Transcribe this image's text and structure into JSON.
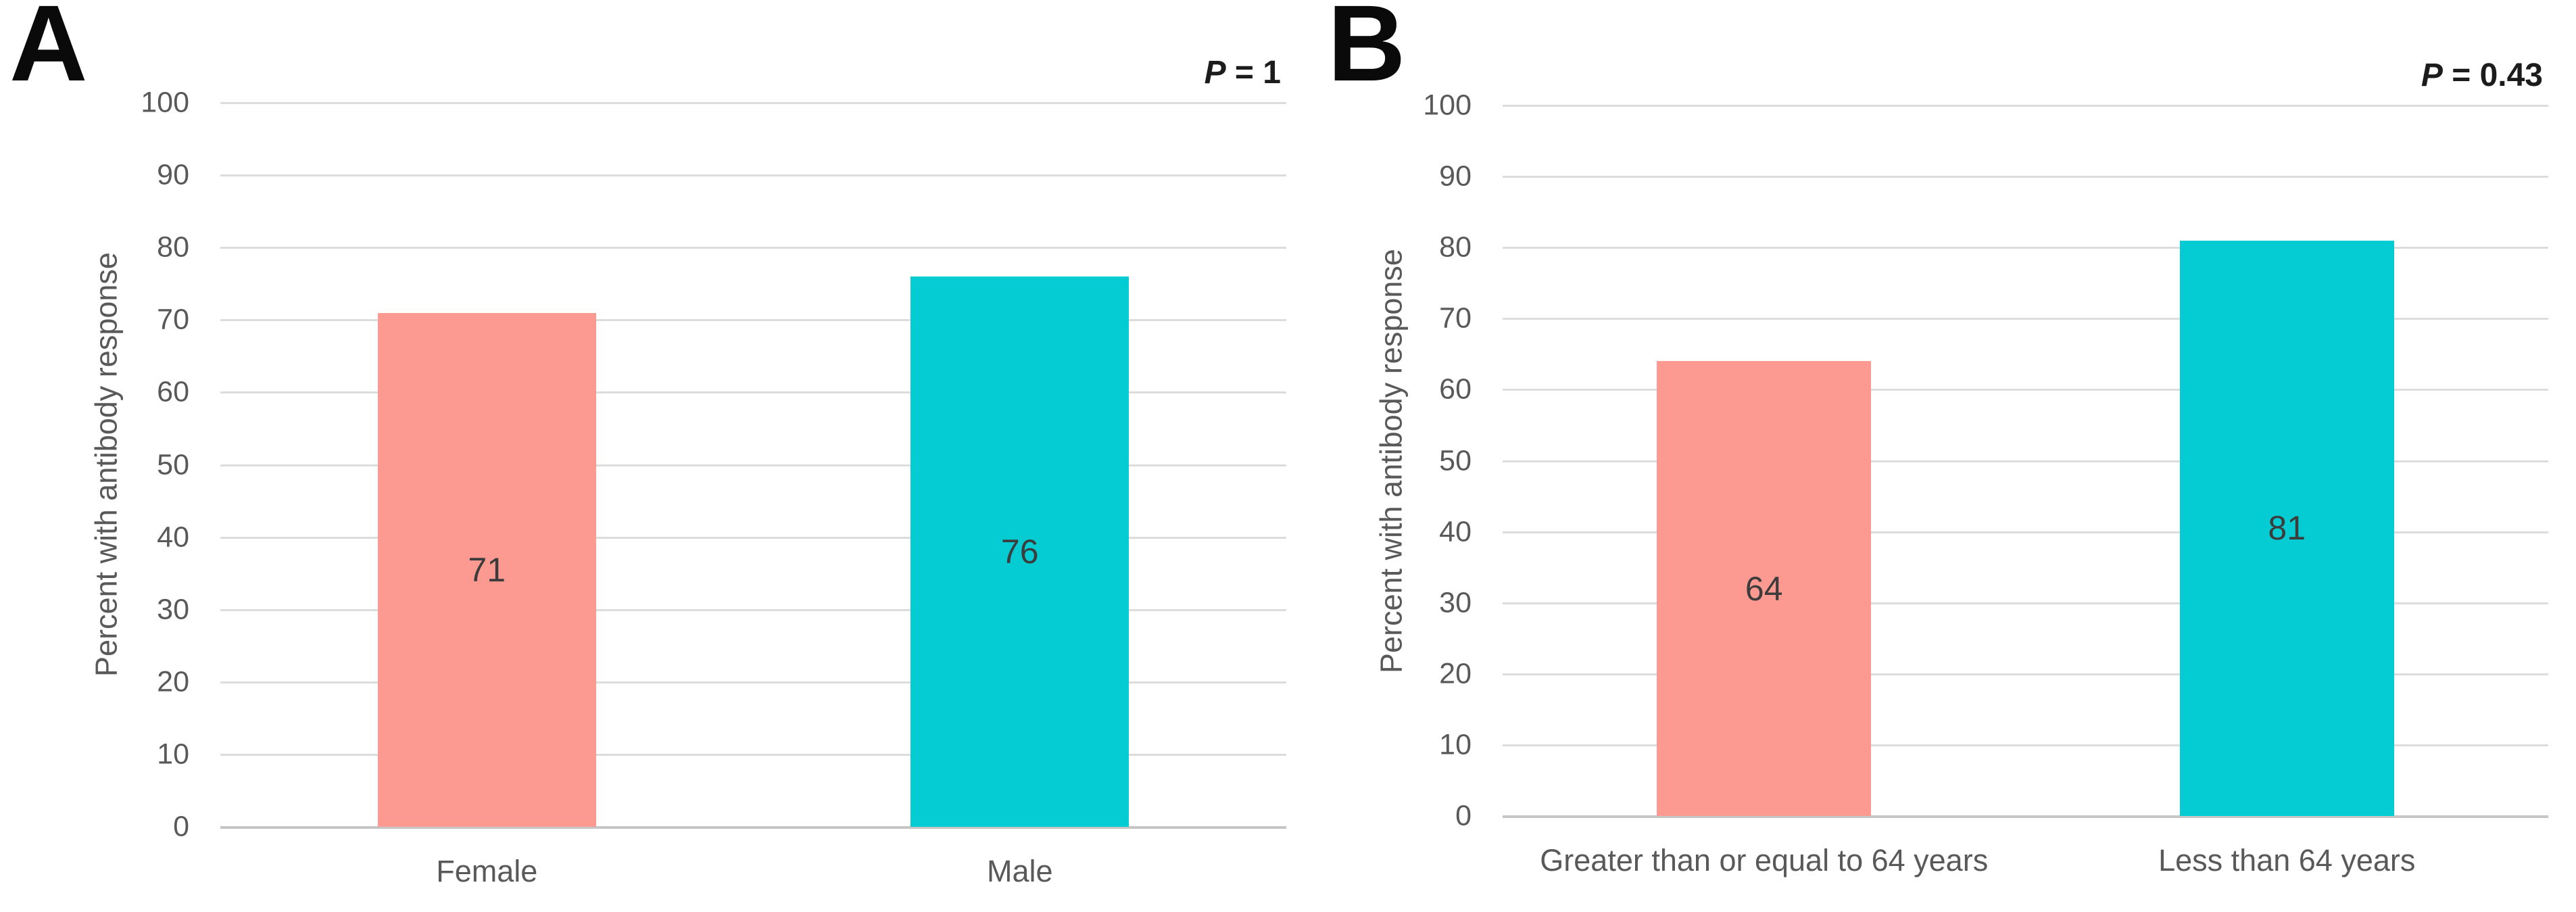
{
  "figure": {
    "background": "#FFFFFF"
  },
  "chart_data": [
    {
      "type": "bar",
      "panel_letter": "A",
      "title": "",
      "xlabel": "",
      "ylabel": "Percent with antibody response",
      "categories": [
        "Female",
        "Male"
      ],
      "values": [
        71,
        76
      ],
      "data_labels": [
        "71",
        "76"
      ],
      "bar_colors": [
        "#FC9A92",
        "#05CBD3"
      ],
      "ylim": [
        0,
        100
      ],
      "yticks": [
        0,
        10,
        20,
        30,
        40,
        50,
        60,
        70,
        80,
        90,
        100
      ],
      "grid": true,
      "legend": false,
      "annotation": "P = 1",
      "p_symbol": "P",
      "p_rest": " = 1",
      "colors": {
        "gridline": "#DCDCDC",
        "axis_line": "#C6C6C6",
        "tick_text": "#595959",
        "category_text": "#595959",
        "value_label_text": "#3C3C3C",
        "p_text": "#1C1C1C",
        "panel_letter_text": "#0A0A0A"
      }
    },
    {
      "type": "bar",
      "panel_letter": "B",
      "title": "",
      "xlabel": "",
      "ylabel": "Percent with antibody response",
      "categories": [
        "Greater than or equal to 64 years",
        "Less than 64 years"
      ],
      "values": [
        64,
        81
      ],
      "data_labels": [
        "64",
        "81"
      ],
      "bar_colors": [
        "#FC9A92",
        "#05CBD3"
      ],
      "ylim": [
        0,
        100
      ],
      "yticks": [
        0,
        10,
        20,
        30,
        40,
        50,
        60,
        70,
        80,
        90,
        100
      ],
      "grid": true,
      "legend": false,
      "annotation": "P = 0.43",
      "p_symbol": "P",
      "p_rest": " = 0.43",
      "colors": {
        "gridline": "#DCDCDC",
        "axis_line": "#C6C6C6",
        "tick_text": "#595959",
        "category_text": "#595959",
        "value_label_text": "#3C3C3C",
        "p_text": "#1C1C1C",
        "panel_letter_text": "#0A0A0A"
      }
    }
  ]
}
